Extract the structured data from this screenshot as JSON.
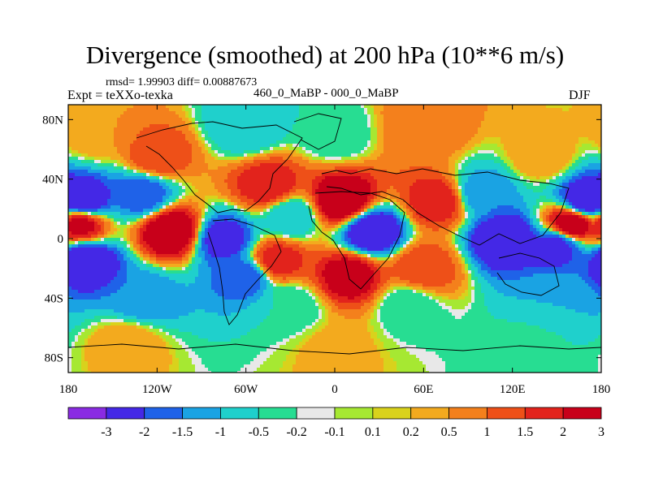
{
  "chart_data": {
    "type": "heatmap",
    "title": "Divergence (smoothed) at 200 hPa (10**6 m/s)",
    "stats": "rmsd= 1.99903 diff= 0.00887673",
    "experiment": "Expt = teXXo-texka",
    "period": "460_0_MaBP - 000_0_MaBP",
    "season": "DJF",
    "x_ticks": [
      {
        "value": -180,
        "label": "180"
      },
      {
        "value": -120,
        "label": "120W"
      },
      {
        "value": -60,
        "label": "60W"
      },
      {
        "value": 0,
        "label": "0"
      },
      {
        "value": 60,
        "label": "60E"
      },
      {
        "value": 120,
        "label": "120E"
      },
      {
        "value": 180,
        "label": "180"
      }
    ],
    "y_ticks": [
      {
        "value": 80,
        "label": "80N"
      },
      {
        "value": 40,
        "label": "40N"
      },
      {
        "value": 0,
        "label": "0"
      },
      {
        "value": -40,
        "label": "40S"
      },
      {
        "value": -80,
        "label": "80S"
      }
    ],
    "xlim": [
      -180,
      180
    ],
    "ylim": [
      -90,
      90
    ],
    "colorbar": {
      "levels": [
        "-3",
        "-2",
        "-1.5",
        "-1",
        "-0.5",
        "-0.2",
        "-0.1",
        "0.1",
        "0.2",
        "0.5",
        "1",
        "1.5",
        "2",
        "3"
      ],
      "colors": [
        "#8a2be2",
        "#4428e6",
        "#1f62e8",
        "#1aa3e3",
        "#1fd0cc",
        "#27dd92",
        "#e8e8e8",
        "#a6e832",
        "#d9d21c",
        "#f3aa1e",
        "#f4801c",
        "#ee5018",
        "#e2231c",
        "#c8001a"
      ]
    },
    "fields": [
      {
        "lon": -170,
        "lat": 25,
        "value": -3
      },
      {
        "lon": -172,
        "lat": 10,
        "value": 2.5
      },
      {
        "lon": -168,
        "lat": -15,
        "value": -3
      },
      {
        "lon": -130,
        "lat": 30,
        "value": -2
      },
      {
        "lon": -120,
        "lat": 55,
        "value": 1.5
      },
      {
        "lon": -110,
        "lat": 5,
        "value": 3
      },
      {
        "lon": -160,
        "lat": 70,
        "value": 0.5
      },
      {
        "lon": -75,
        "lat": 0,
        "value": -2.5
      },
      {
        "lon": -60,
        "lat": -25,
        "value": -2
      },
      {
        "lon": -40,
        "lat": -15,
        "value": 2
      },
      {
        "lon": -45,
        "lat": 35,
        "value": 2
      },
      {
        "lon": -30,
        "lat": 15,
        "value": -1
      },
      {
        "lon": 5,
        "lat": 25,
        "value": 3
      },
      {
        "lon": 25,
        "lat": 5,
        "value": -3
      },
      {
        "lon": 10,
        "lat": -25,
        "value": 2.5
      },
      {
        "lon": 60,
        "lat": -20,
        "value": 1.5
      },
      {
        "lon": 70,
        "lat": 25,
        "value": 2
      },
      {
        "lon": 100,
        "lat": 30,
        "value": -1.5
      },
      {
        "lon": 115,
        "lat": 0,
        "value": -3
      },
      {
        "lon": 150,
        "lat": -5,
        "value": -2.5
      },
      {
        "lon": 170,
        "lat": 25,
        "value": -3
      },
      {
        "lon": 160,
        "lat": 10,
        "value": 3
      },
      {
        "lon": 140,
        "lat": 55,
        "value": 0.5
      },
      {
        "lon": 0,
        "lat": 70,
        "value": -0.5
      },
      {
        "lon": 60,
        "lat": 75,
        "value": 1
      },
      {
        "lon": -60,
        "lat": 75,
        "value": -1
      },
      {
        "lon": -130,
        "lat": -40,
        "value": -1.5
      },
      {
        "lon": -30,
        "lat": -45,
        "value": -0.5
      },
      {
        "lon": 50,
        "lat": -45,
        "value": -0.5
      },
      {
        "lon": 150,
        "lat": -40,
        "value": -1
      },
      {
        "lon": 0,
        "lat": -75,
        "value": 0.3
      },
      {
        "lon": -140,
        "lat": -70,
        "value": 0.5
      },
      {
        "lon": 130,
        "lat": -75,
        "value": -0.3
      }
    ]
  }
}
